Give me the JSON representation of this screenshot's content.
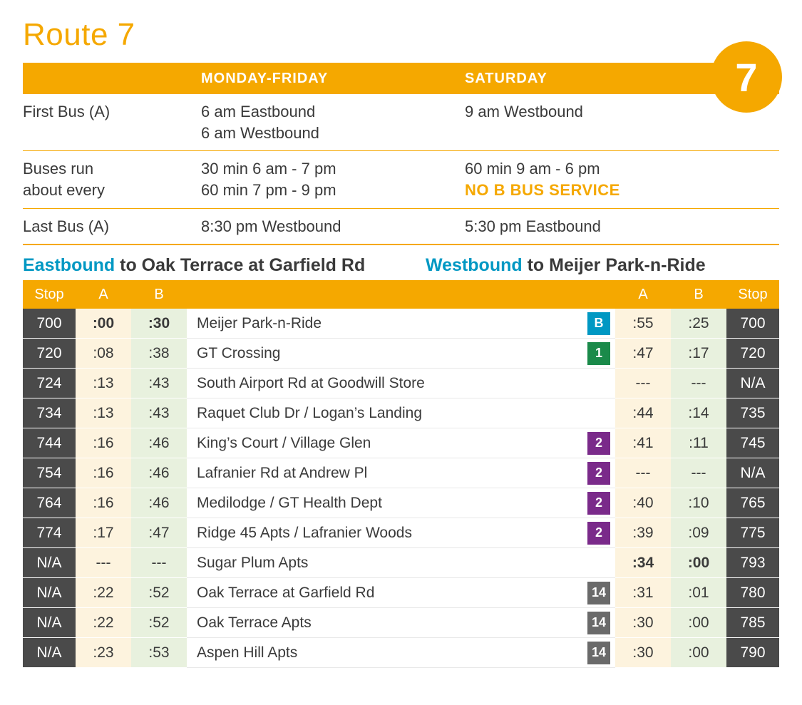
{
  "colors": {
    "accent": "#f5a800",
    "dark": "#4a4a4a",
    "text": "#3a3a3a",
    "cyan": "#0098c3",
    "colA_bg": "#fdf3de",
    "colB_bg": "#e8f1de",
    "badge_B": "#0098c3",
    "badge_1": "#1a8a4a",
    "badge_2": "#7a2a8a",
    "badge_14": "#6a6a6a"
  },
  "title": "Route 7",
  "badge_number": "7",
  "header": {
    "weekday": "MONDAY-FRIDAY",
    "saturday": "SATURDAY"
  },
  "summary": [
    {
      "label": "First Bus (A)",
      "weekday": [
        "6 am Eastbound",
        "6 am Westbound"
      ],
      "saturday": [
        "9 am Westbound"
      ]
    },
    {
      "label_lines": [
        "Buses run",
        "about every"
      ],
      "weekday": [
        "30 min 6 am - 7 pm",
        "60 min 7 pm - 9 pm"
      ],
      "saturday": [
        "60 min 9 am - 6 pm"
      ],
      "saturday_note": "NO B BUS SERVICE"
    },
    {
      "label": "Last Bus (A)",
      "weekday": [
        "8:30 pm Westbound"
      ],
      "saturday": [
        "5:30 pm Eastbound"
      ]
    }
  ],
  "directions": {
    "east_prefix": "Eastbound",
    "east_dest": " to Oak Terrace at Garfield Rd",
    "west_prefix": "Westbound",
    "west_dest": " to Meijer Park-n-Ride"
  },
  "sched_header": {
    "stop": "Stop",
    "a": "A",
    "b": "B"
  },
  "rows": [
    {
      "stop_l": "700",
      "a": ":00",
      "b": ":30",
      "name": "Meijer Park-n-Ride",
      "badge": "B",
      "badge_color": "#0098c3",
      "a2": ":55",
      "b2": ":25",
      "stop_r": "700",
      "bold": true
    },
    {
      "stop_l": "720",
      "a": ":08",
      "b": ":38",
      "name": "GT Crossing",
      "badge": "1",
      "badge_color": "#1a8a4a",
      "a2": ":47",
      "b2": ":17",
      "stop_r": "720"
    },
    {
      "stop_l": "724",
      "a": ":13",
      "b": ":43",
      "name": "South Airport Rd at Goodwill Store",
      "a2": "---",
      "b2": "---",
      "stop_r": "N/A"
    },
    {
      "stop_l": "734",
      "a": ":13",
      "b": ":43",
      "name": "Raquet Club Dr / Logan’s Landing",
      "a2": ":44",
      "b2": ":14",
      "stop_r": "735"
    },
    {
      "stop_l": "744",
      "a": ":16",
      "b": ":46",
      "name": "King’s Court / Village Glen",
      "badge": "2",
      "badge_color": "#7a2a8a",
      "a2": ":41",
      "b2": ":11",
      "stop_r": "745"
    },
    {
      "stop_l": "754",
      "a": ":16",
      "b": ":46",
      "name": "Lafranier Rd at Andrew Pl",
      "badge": "2",
      "badge_color": "#7a2a8a",
      "a2": "---",
      "b2": "---",
      "stop_r": "N/A"
    },
    {
      "stop_l": "764",
      "a": ":16",
      "b": ":46",
      "name": "Medilodge / GT Health Dept",
      "badge": "2",
      "badge_color": "#7a2a8a",
      "a2": ":40",
      "b2": ":10",
      "stop_r": "765"
    },
    {
      "stop_l": "774",
      "a": ":17",
      "b": ":47",
      "name": "Ridge 45 Apts / Lafranier Woods",
      "badge": "2",
      "badge_color": "#7a2a8a",
      "a2": ":39",
      "b2": ":09",
      "stop_r": "775"
    },
    {
      "stop_l": "N/A",
      "a": "---",
      "b": "---",
      "name": "Sugar Plum Apts",
      "a2": ":34",
      "b2": ":00",
      "stop_r": "793",
      "bold_r": true
    },
    {
      "stop_l": "N/A",
      "a": ":22",
      "b": ":52",
      "name": "Oak Terrace at Garfield Rd",
      "badge": "14",
      "badge_color": "#6a6a6a",
      "a2": ":31",
      "b2": ":01",
      "stop_r": "780"
    },
    {
      "stop_l": "N/A",
      "a": ":22",
      "b": ":52",
      "name": "Oak Terrace Apts",
      "badge": "14",
      "badge_color": "#6a6a6a",
      "a2": ":30",
      "b2": ":00",
      "stop_r": "785"
    },
    {
      "stop_l": "N/A",
      "a": ":23",
      "b": ":53",
      "name": "Aspen Hill Apts",
      "badge": "14",
      "badge_color": "#6a6a6a",
      "a2": ":30",
      "b2": ":00",
      "stop_r": "790"
    }
  ]
}
